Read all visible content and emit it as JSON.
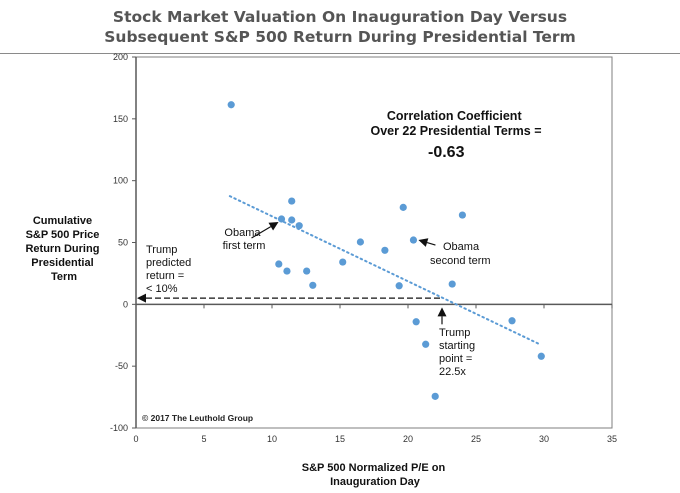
{
  "chart_data": {
    "type": "scatter",
    "title": [
      "Stock Market Valuation On Inauguration Day Versus",
      "Subsequent S&P 500 Return During Presidential Term"
    ],
    "xlabel": [
      "S&P 500 Normalized P/E on",
      "Inauguration Day"
    ],
    "ylabel": [
      "Cumulative",
      "S&P 500 Price",
      "Return During",
      "Presidential",
      "Term"
    ],
    "xlim": [
      0,
      35
    ],
    "ylim": [
      -100,
      200
    ],
    "xticks": [
      0,
      5,
      10,
      15,
      20,
      25,
      30,
      35
    ],
    "yticks": [
      -100,
      -50,
      0,
      50,
      100,
      150,
      200
    ],
    "grid": false,
    "point_color": "#5B9BD5",
    "points": [
      {
        "x": 7.0,
        "y": 161.4
      },
      {
        "x": 10.7,
        "y": 69.0
      },
      {
        "x": 11.45,
        "y": 83.5
      },
      {
        "x": 11.45,
        "y": 68.2
      },
      {
        "x": 12.0,
        "y": 63.6
      },
      {
        "x": 10.5,
        "y": 32.6
      },
      {
        "x": 11.1,
        "y": 26.9
      },
      {
        "x": 12.55,
        "y": 26.9
      },
      {
        "x": 13.0,
        "y": 15.4
      },
      {
        "x": 15.2,
        "y": 34.2
      },
      {
        "x": 16.5,
        "y": 50.4
      },
      {
        "x": 18.3,
        "y": 43.7
      },
      {
        "x": 19.65,
        "y": 78.4
      },
      {
        "x": 20.4,
        "y": 52.0
      },
      {
        "x": 24.0,
        "y": 72.2
      },
      {
        "x": 19.35,
        "y": 15.0
      },
      {
        "x": 23.25,
        "y": 16.4
      },
      {
        "x": 20.6,
        "y": -14.1
      },
      {
        "x": 21.3,
        "y": -32.3
      },
      {
        "x": 22.0,
        "y": -74.4
      },
      {
        "x": 27.65,
        "y": -13.3
      },
      {
        "x": 29.8,
        "y": -42.0
      }
    ],
    "trendline": {
      "x1": 6.9,
      "y1": 87.5,
      "x2": 29.65,
      "y2": -32.1,
      "style": "dotted"
    },
    "annotations": {
      "correlation": {
        "lines": [
          "Correlation Coefficient",
          "Over 22 Presidential Terms ="
        ],
        "value": "-0.63"
      },
      "obama_first": {
        "lines": [
          "Obama",
          "first term"
        ],
        "target": {
          "x": 10.7,
          "y": 69.0
        }
      },
      "obama_second": {
        "lines": [
          "Obama",
          "second term"
        ],
        "target": {
          "x": 20.4,
          "y": 52.0
        }
      },
      "trump_predicted": {
        "lines": [
          "Trump",
          "predicted",
          "return =",
          "< 10%"
        ],
        "value_y": 5
      },
      "trump_start": {
        "lines": [
          "Trump",
          "starting",
          "point =",
          "22.5x"
        ],
        "value_x": 22.5
      }
    },
    "copyright": "© 2017 The Leuthold Group"
  }
}
